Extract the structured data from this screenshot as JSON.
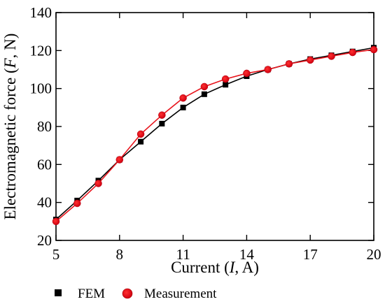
{
  "chart_data": {
    "type": "line",
    "xlabel_parts": [
      "Current (",
      "I",
      ", A)"
    ],
    "ylabel_parts": [
      "Electromagnetic force (",
      "F",
      ", N)"
    ],
    "xlim": [
      5,
      20
    ],
    "ylim": [
      20,
      140
    ],
    "xticks": [
      5,
      8,
      11,
      14,
      17,
      20
    ],
    "yticks": [
      20,
      40,
      60,
      80,
      100,
      120,
      140
    ],
    "grid": false,
    "legend_position": "bottom",
    "x": [
      5,
      6,
      7,
      8,
      9,
      10,
      11,
      12,
      13,
      14,
      15,
      16,
      17,
      18,
      19,
      20
    ],
    "series": [
      {
        "name": "FEM",
        "marker": "square",
        "color": "#000000",
        "values": [
          31,
          41,
          51.5,
          62.5,
          72,
          81.5,
          90,
          97,
          102,
          106.5,
          110,
          113,
          115.5,
          117.5,
          119.5,
          121.5
        ]
      },
      {
        "name": "Measurement",
        "marker": "circle",
        "color": "#e8141c",
        "values": [
          30,
          39.5,
          50,
          62.5,
          76,
          86,
          95,
          101,
          105,
          108,
          110,
          113,
          115,
          117,
          119,
          120.5
        ]
      }
    ]
  }
}
